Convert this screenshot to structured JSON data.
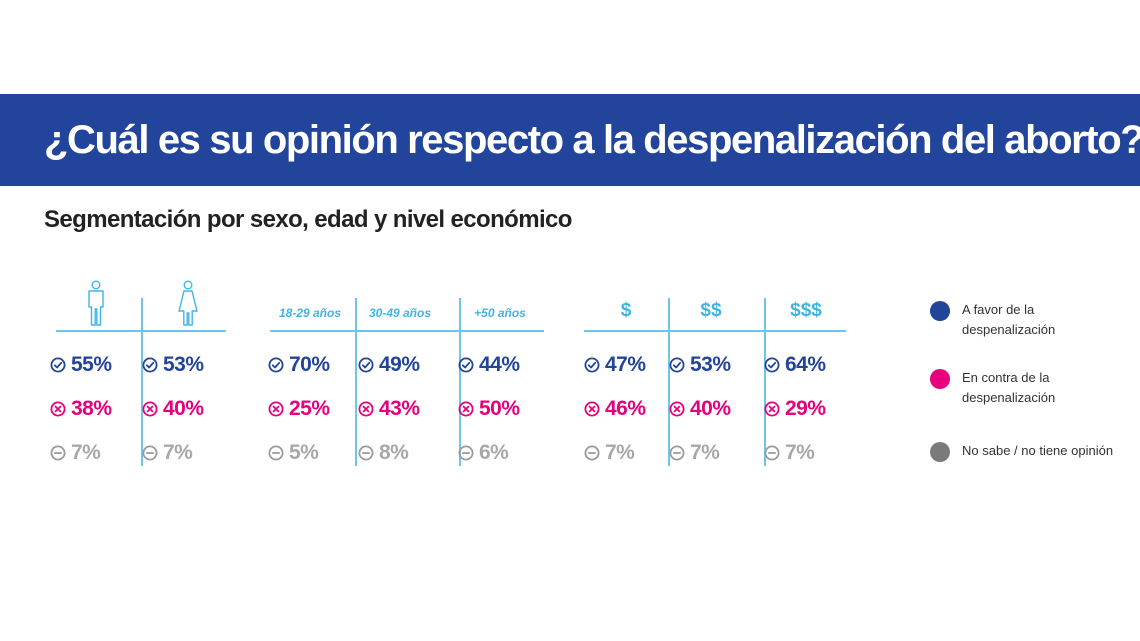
{
  "chart_data": {
    "type": "table",
    "title": "¿Cuál es su opinión respecto a la despenalización del aborto?",
    "subtitle": "Segmentación por sexo, edad y nivel económico",
    "groups": [
      {
        "segment": "sexo",
        "columns": [
          {
            "label": "",
            "icon": "man-icon",
            "favor": "55%",
            "contra": "38%",
            "nosabe": "7%"
          },
          {
            "label": "",
            "icon": "woman-icon",
            "favor": "53%",
            "contra": "40%",
            "nosabe": "7%"
          }
        ]
      },
      {
        "segment": "edad",
        "columns": [
          {
            "label": "18-29 años",
            "favor": "70%",
            "contra": "25%",
            "nosabe": "5%"
          },
          {
            "label": "30-49 años",
            "favor": "49%",
            "contra": "43%",
            "nosabe": "8%"
          },
          {
            "label": "+50 años",
            "favor": "44%",
            "contra": "50%",
            "nosabe": "6%"
          }
        ]
      },
      {
        "segment": "nivel-economico",
        "columns": [
          {
            "label": "$",
            "favor": "47%",
            "contra": "46%",
            "nosabe": "7%"
          },
          {
            "label": "$$",
            "favor": "53%",
            "contra": "40%",
            "nosabe": "7%"
          },
          {
            "label": "$$$",
            "favor": "64%",
            "contra": "29%",
            "nosabe": "7%"
          }
        ]
      }
    ],
    "legend": [
      {
        "key": "favor",
        "label": "A favor de la despenalización",
        "color": "#22449b"
      },
      {
        "key": "contra",
        "label": "En contra de la despenalización",
        "color": "#e6007e"
      },
      {
        "key": "nosabe",
        "label": "No sabe / no tiene opinión",
        "color": "#7a7a7a"
      }
    ],
    "legend_position": "right"
  },
  "colors": {
    "banner": "#22449b",
    "divider": "#6fc4e9",
    "header": "#40b5e4",
    "favor_text": "#22449b",
    "contra_text": "#e6007e",
    "nosabe_text": "#a8a8a8",
    "nosabe_icon": "#9a9a9a"
  }
}
